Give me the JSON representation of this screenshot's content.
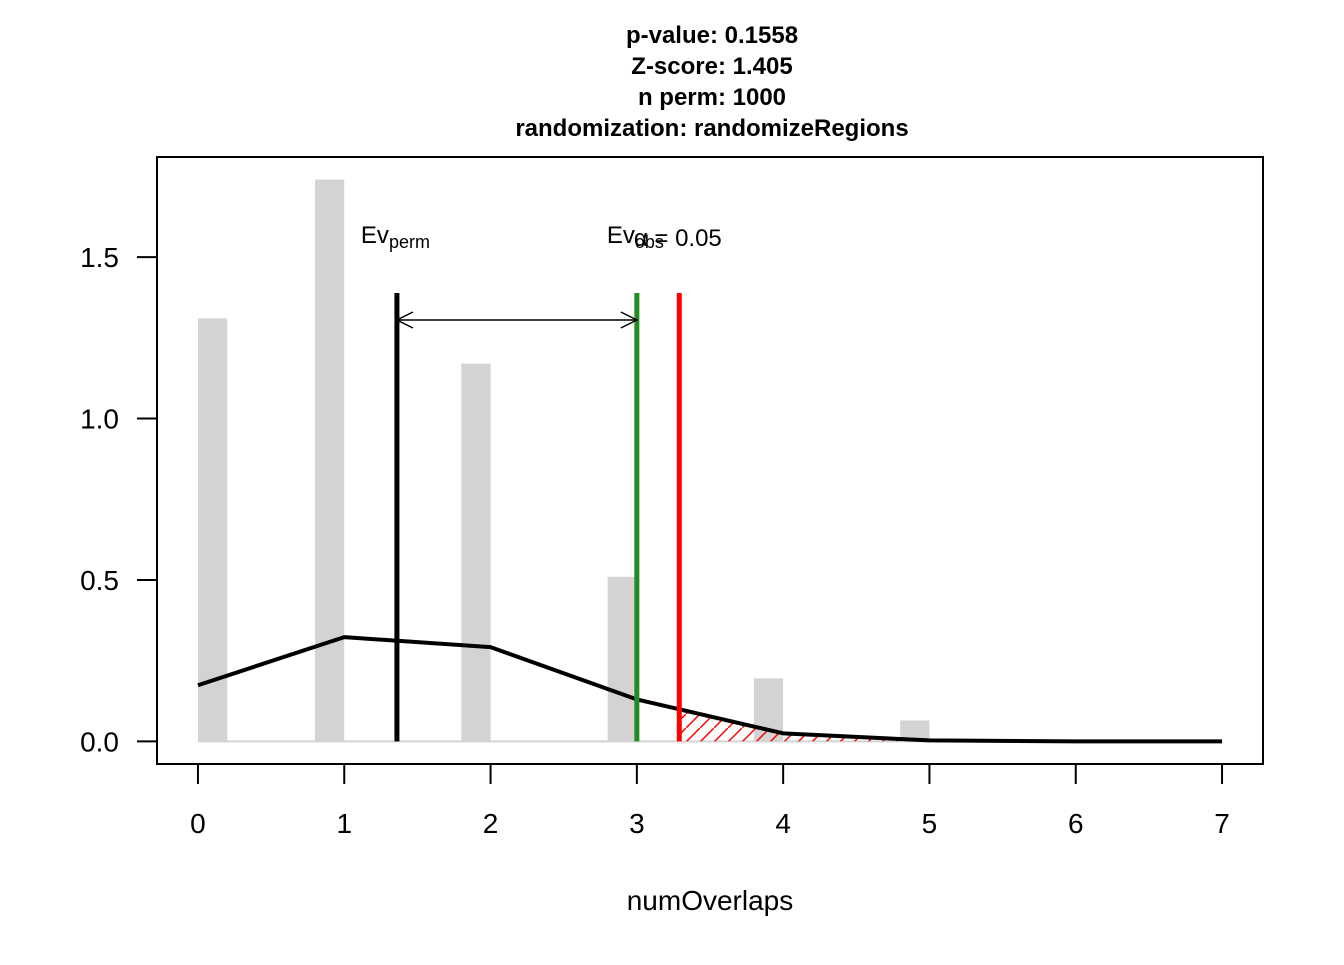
{
  "chart_data": {
    "type": "bar",
    "title": [
      "p-value:  0.1558",
      "Z-score:  1.405",
      "n perm:  1000",
      "randomization:  randomizeRegions"
    ],
    "x_label": "numOverlaps",
    "xlim": [
      -0.28,
      7.28
    ],
    "ylim": [
      -0.07,
      1.81
    ],
    "xticks": [
      0,
      1,
      2,
      3,
      4,
      5,
      6,
      7
    ],
    "yticks": [
      {
        "value": 0,
        "label": "0.0"
      },
      0.5,
      {
        "value": 1,
        "label": "1.0"
      },
      1.5
    ],
    "bars": {
      "x": [
        0,
        1,
        2,
        3,
        4,
        5
      ],
      "values": [
        1.31,
        1.74,
        1.17,
        0.51,
        0.195,
        0.065
      ],
      "color": "#d3d3d3"
    },
    "density": {
      "x": [
        0,
        1,
        2,
        3,
        4,
        5,
        6,
        7
      ],
      "values": [
        0.174,
        0.323,
        0.292,
        0.13,
        0.025,
        0.003,
        0,
        0
      ],
      "color": "#000000"
    },
    "ev_perm": {
      "value": 1.36,
      "label": "Ev",
      "subscript": "perm",
      "color": "#000000"
    },
    "ev_obs": {
      "value": 3,
      "label": "Ev",
      "subscript": "obs",
      "color": "#228b22"
    },
    "alpha": {
      "value": 3.29,
      "label": "α = 0.05",
      "color": "#ff0000"
    }
  }
}
